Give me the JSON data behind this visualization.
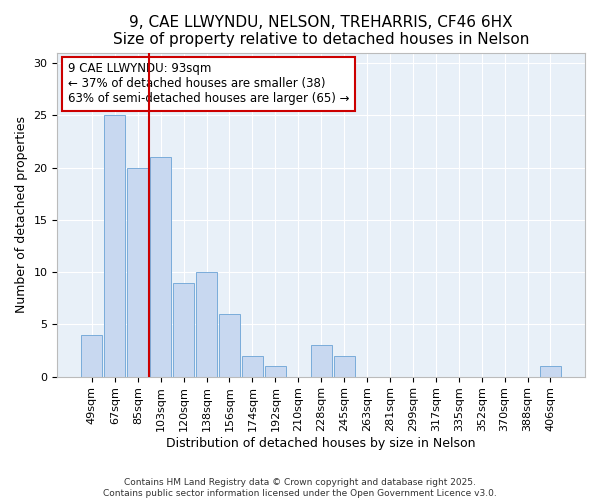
{
  "title_line1": "9, CAE LLWYNDU, NELSON, TREHARRIS, CF46 6HX",
  "title_line2": "Size of property relative to detached houses in Nelson",
  "xlabel": "Distribution of detached houses by size in Nelson",
  "ylabel": "Number of detached properties",
  "categories": [
    "49sqm",
    "67sqm",
    "85sqm",
    "103sqm",
    "120sqm",
    "138sqm",
    "156sqm",
    "174sqm",
    "192sqm",
    "210sqm",
    "228sqm",
    "245sqm",
    "263sqm",
    "281sqm",
    "299sqm",
    "317sqm",
    "335sqm",
    "352sqm",
    "370sqm",
    "388sqm",
    "406sqm"
  ],
  "values": [
    4,
    25,
    20,
    21,
    9,
    10,
    6,
    2,
    1,
    0,
    3,
    2,
    0,
    0,
    0,
    0,
    0,
    0,
    0,
    0,
    1
  ],
  "bar_color": "#c8d8f0",
  "bar_edge_color": "#7aacda",
  "red_line_x": 2.5,
  "annotation_text": "9 CAE LLWYNDU: 93sqm\n← 37% of detached houses are smaller (38)\n63% of semi-detached houses are larger (65) →",
  "annotation_box_color": "white",
  "annotation_box_edge_color": "#cc0000",
  "red_line_color": "#cc0000",
  "ylim": [
    0,
    31
  ],
  "yticks": [
    0,
    5,
    10,
    15,
    20,
    25,
    30
  ],
  "footer_line1": "Contains HM Land Registry data © Crown copyright and database right 2025.",
  "footer_line2": "Contains public sector information licensed under the Open Government Licence v3.0.",
  "fig_bg_color": "#ffffff",
  "plot_bg_color": "#e8f0f8",
  "grid_color": "#ffffff",
  "title_fontsize": 11,
  "subtitle_fontsize": 10,
  "axis_label_fontsize": 9,
  "tick_fontsize": 8,
  "annotation_fontsize": 8.5
}
